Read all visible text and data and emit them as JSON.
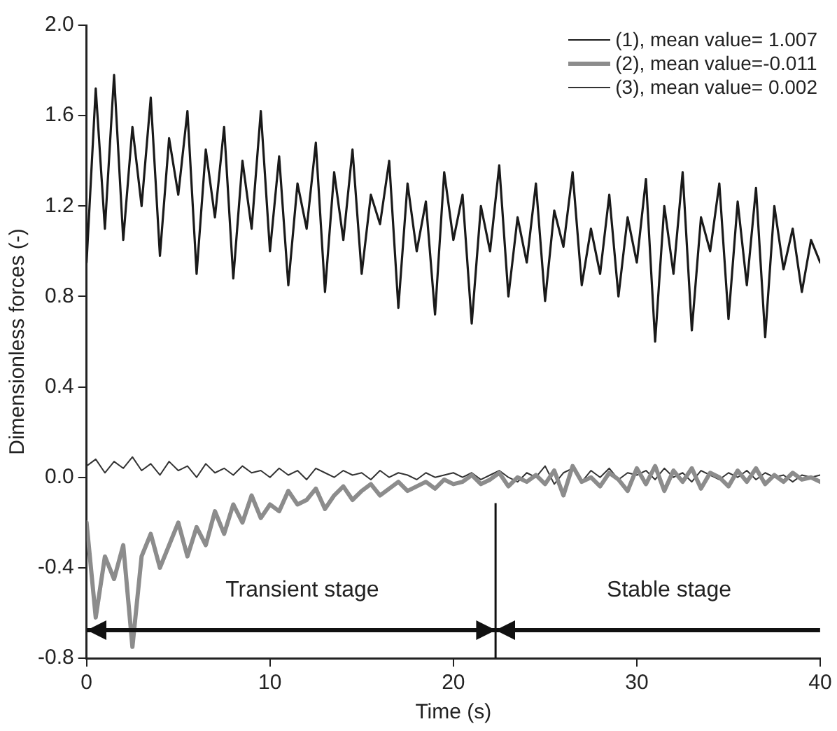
{
  "chart_data": {
    "type": "line",
    "xlabel": "Time (s)",
    "ylabel": "Dimensionless forces (-)",
    "x": [
      0,
      0.5,
      1,
      1.5,
      2,
      2.5,
      3,
      3.5,
      4,
      4.5,
      5,
      5.5,
      6,
      6.5,
      7,
      7.5,
      8,
      8.5,
      9,
      9.5,
      10,
      10.5,
      11,
      11.5,
      12,
      12.5,
      13,
      13.5,
      14,
      14.5,
      15,
      15.5,
      16,
      16.5,
      17,
      17.5,
      18,
      18.5,
      19,
      19.5,
      20,
      20.5,
      21,
      21.5,
      22,
      22.5,
      23,
      23.5,
      24,
      24.5,
      25,
      25.5,
      26,
      26.5,
      27,
      27.5,
      28,
      28.5,
      29,
      29.5,
      30,
      30.5,
      31,
      31.5,
      32,
      32.5,
      33,
      33.5,
      34,
      34.5,
      35,
      35.5,
      36,
      36.5,
      37,
      37.5,
      38,
      38.5,
      39,
      39.5,
      40
    ],
    "series": [
      {
        "name": "(1), mean value= 1.007",
        "color": "#1a1a1a",
        "values": [
          0.95,
          1.72,
          1.1,
          1.78,
          1.05,
          1.55,
          1.2,
          1.68,
          0.98,
          1.5,
          1.25,
          1.62,
          0.9,
          1.45,
          1.15,
          1.55,
          0.88,
          1.4,
          1.1,
          1.62,
          1.0,
          1.42,
          0.85,
          1.3,
          1.1,
          1.48,
          0.82,
          1.35,
          1.05,
          1.45,
          0.9,
          1.25,
          1.12,
          1.4,
          0.75,
          1.3,
          1.0,
          1.22,
          0.72,
          1.35,
          1.05,
          1.25,
          0.68,
          1.2,
          1.0,
          1.38,
          0.8,
          1.15,
          0.95,
          1.3,
          0.78,
          1.18,
          1.02,
          1.35,
          0.85,
          1.1,
          0.9,
          1.25,
          0.8,
          1.15,
          0.95,
          1.32,
          0.6,
          1.2,
          0.9,
          1.35,
          0.65,
          1.15,
          1.0,
          1.3,
          0.7,
          1.22,
          0.85,
          1.28,
          0.62,
          1.2,
          0.92,
          1.1,
          0.82,
          1.05,
          0.95
        ]
      },
      {
        "name": "(2), mean value=-0.011",
        "color": "#8c8c8c",
        "values": [
          -0.2,
          -0.62,
          -0.35,
          -0.45,
          -0.3,
          -0.75,
          -0.35,
          -0.25,
          -0.4,
          -0.3,
          -0.2,
          -0.35,
          -0.22,
          -0.3,
          -0.15,
          -0.25,
          -0.12,
          -0.2,
          -0.08,
          -0.18,
          -0.12,
          -0.15,
          -0.06,
          -0.12,
          -0.1,
          -0.05,
          -0.14,
          -0.08,
          -0.04,
          -0.1,
          -0.06,
          -0.03,
          -0.08,
          -0.05,
          -0.02,
          -0.06,
          -0.04,
          -0.02,
          -0.05,
          -0.01,
          -0.03,
          -0.02,
          0.01,
          -0.03,
          -0.01,
          0.02,
          -0.04,
          0.0,
          -0.02,
          0.01,
          -0.03,
          0.03,
          -0.08,
          0.05,
          -0.02,
          0.0,
          -0.04,
          0.02,
          -0.01,
          -0.06,
          0.04,
          -0.03,
          0.05,
          -0.06,
          0.03,
          -0.02,
          0.04,
          -0.05,
          0.02,
          0.0,
          -0.04,
          0.03,
          -0.02,
          0.04,
          -0.03,
          0.01,
          -0.02,
          0.02,
          -0.01,
          0.0,
          -0.02
        ]
      },
      {
        "name": "(3), mean value= 0.002",
        "color": "#333333",
        "values": [
          0.05,
          0.08,
          0.02,
          0.07,
          0.04,
          0.09,
          0.03,
          0.06,
          0.01,
          0.07,
          0.03,
          0.05,
          0.0,
          0.06,
          0.02,
          0.04,
          0.01,
          0.05,
          0.02,
          0.03,
          0.0,
          0.04,
          0.01,
          0.03,
          -0.01,
          0.04,
          0.02,
          0.0,
          0.03,
          0.01,
          0.02,
          -0.01,
          0.03,
          0.0,
          0.02,
          0.01,
          -0.01,
          0.02,
          0.0,
          0.01,
          0.02,
          0.0,
          0.02,
          -0.01,
          0.01,
          0.03,
          0.0,
          -0.02,
          0.02,
          0.0,
          0.05,
          -0.03,
          0.02,
          0.04,
          -0.02,
          0.03,
          0.0,
          0.04,
          -0.01,
          0.02,
          0.01,
          0.03,
          -0.01,
          0.04,
          0.0,
          0.02,
          -0.02,
          0.03,
          0.01,
          -0.01,
          0.02,
          0.0,
          0.03,
          -0.01,
          0.02,
          0.0,
          0.01,
          -0.02,
          0.01,
          0.0,
          0.01
        ]
      }
    ],
    "xlim": [
      0,
      40
    ],
    "xticks": [
      0,
      10,
      20,
      30,
      40
    ],
    "ylim": [
      -0.8,
      2.0
    ],
    "yticks": [
      -0.8,
      -0.4,
      {
        "value": 0,
        "label": "0.0"
      },
      {
        "value": 0.4,
        "label": "0.4"
      },
      {
        "value": 0.8,
        "label": "0.8"
      },
      {
        "value": 1.2,
        "label": "1.2"
      },
      1.6,
      {
        "value": 2,
        "label": "2.0"
      }
    ],
    "ref_lines": [
      {
        "axis": "x",
        "value": 22.3
      }
    ],
    "annotations": [
      "Transient stage",
      "Stable stage"
    ],
    "grid": false,
    "legend": "top right",
    "marker": "none",
    "line_style": "solid"
  }
}
